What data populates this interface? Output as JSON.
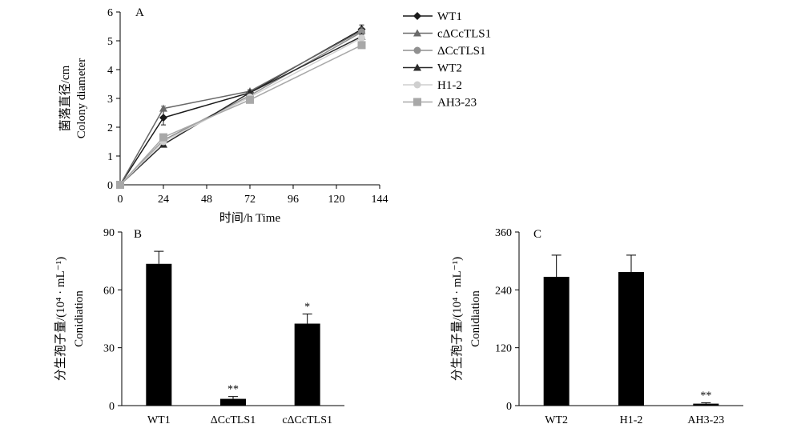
{
  "colors": {
    "WT1": "#1a1a1a",
    "cΔCcTLS1": "#6a6a6a",
    "ΔCcTLS1": "#909090",
    "WT2": "#2a2a2a",
    "H1-2": "#cfcfcf",
    "AH3-23": "#a8a8a8",
    "bar": "#000000"
  },
  "chart_data": [
    {
      "panel": "A",
      "type": "line",
      "xlabel": "时间/h Time",
      "ylabel_lines": [
        "菌落直径/cm",
        "Colony diameter"
      ],
      "xlim": [
        0,
        144
      ],
      "ylim": [
        0,
        6
      ],
      "xticks": [
        0,
        24,
        48,
        72,
        96,
        120,
        144
      ],
      "yticks": [
        0,
        1,
        2,
        3,
        4,
        5,
        6
      ],
      "legend_position": "right",
      "x": [
        0,
        24,
        72,
        134
      ],
      "series": [
        {
          "name": "WT1",
          "marker": "diamond",
          "values": [
            0,
            2.33,
            3.2,
            5.4
          ],
          "errors": [
            0,
            0.25,
            0.1,
            0.15
          ]
        },
        {
          "name": "cΔCcTLS1",
          "marker": "triangle",
          "values": [
            0,
            2.65,
            3.25,
            5.35
          ],
          "errors": [
            0,
            0.08,
            0.05,
            0.1
          ]
        },
        {
          "name": "ΔCcTLS1",
          "marker": "circle",
          "values": [
            0,
            1.55,
            3.1,
            5.3
          ],
          "errors": [
            0,
            0.1,
            0.08,
            0.1
          ]
        },
        {
          "name": "WT2",
          "marker": "triangle",
          "values": [
            0,
            1.4,
            3.2,
            5.15
          ],
          "errors": [
            0,
            0.06,
            0.05,
            0.08
          ]
        },
        {
          "name": "H1-2",
          "marker": "circle",
          "values": [
            0,
            1.5,
            3.05,
            5.1
          ],
          "errors": [
            0,
            0.05,
            0.05,
            0.08
          ]
        },
        {
          "name": "AH3-23",
          "marker": "square",
          "values": [
            0,
            1.65,
            2.95,
            4.85
          ],
          "errors": [
            0,
            0.08,
            0.05,
            0.08
          ]
        }
      ]
    },
    {
      "panel": "B",
      "type": "bar",
      "xlabel": "",
      "ylabel_lines": [
        "分生孢子量/(10⁴ · mL⁻¹)",
        "Conidiation"
      ],
      "ylim": [
        0,
        90
      ],
      "yticks": [
        0,
        30,
        60,
        90
      ],
      "categories": [
        "WT1",
        "ΔCcTLS1",
        "cΔCcTLS1"
      ],
      "values": [
        73.5,
        3.5,
        42.5
      ],
      "errors": [
        6.5,
        1.2,
        5
      ],
      "annotations": [
        "",
        "**",
        "*"
      ]
    },
    {
      "panel": "C",
      "type": "bar",
      "xlabel": "",
      "ylabel_lines": [
        "分生孢子量/(10⁴ · mL⁻¹)",
        "Conidiation"
      ],
      "ylim": [
        0,
        360
      ],
      "yticks": [
        0,
        120,
        240,
        360
      ],
      "categories": [
        "WT2",
        "H1-2",
        "AH3-23"
      ],
      "values": [
        267,
        277,
        4
      ],
      "errors": [
        45,
        35,
        2
      ],
      "annotations": [
        "",
        "",
        "**"
      ]
    }
  ]
}
